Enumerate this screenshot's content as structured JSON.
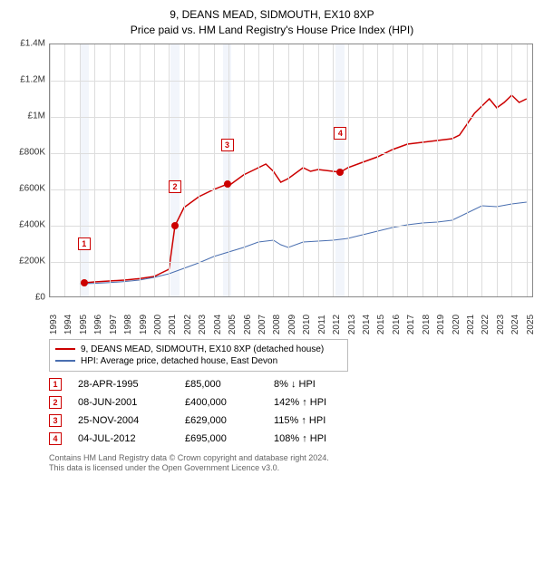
{
  "title": {
    "line1": "9, DEANS MEAD, SIDMOUTH, EX10 8XP",
    "line2": "Price paid vs. HM Land Registry's House Price Index (HPI)"
  },
  "chart": {
    "type": "line",
    "background_color": "#ffffff",
    "grid_color": "#dddddd",
    "border_color": "#888888",
    "band_color": "#e8edf7",
    "xlim": [
      1993,
      2025.5
    ],
    "ylim": [
      0,
      1400000
    ],
    "ytick_step": 200000,
    "y_ticks": [
      {
        "v": 0,
        "label": "£0"
      },
      {
        "v": 200000,
        "label": "£200K"
      },
      {
        "v": 400000,
        "label": "£400K"
      },
      {
        "v": 600000,
        "label": "£600K"
      },
      {
        "v": 800000,
        "label": "£800K"
      },
      {
        "v": 1000000,
        "label": "£1M"
      },
      {
        "v": 1200000,
        "label": "£1.2M"
      },
      {
        "v": 1400000,
        "label": "£1.4M"
      }
    ],
    "x_ticks": [
      1993,
      1994,
      1995,
      1996,
      1997,
      1998,
      1999,
      2000,
      2001,
      2002,
      2003,
      2004,
      2005,
      2006,
      2007,
      2008,
      2009,
      2010,
      2011,
      2012,
      2013,
      2014,
      2015,
      2016,
      2017,
      2018,
      2019,
      2020,
      2021,
      2022,
      2023,
      2024,
      2025
    ],
    "bands": [
      {
        "from": 1995.0,
        "to": 1995.6
      },
      {
        "from": 2001.1,
        "to": 2001.7
      },
      {
        "from": 2004.6,
        "to": 2005.2
      },
      {
        "from": 2012.2,
        "to": 2012.8
      }
    ],
    "series": [
      {
        "name": "property",
        "label": "9, DEANS MEAD, SIDMOUTH, EX10 8XP (detached house)",
        "color": "#cc0000",
        "line_width": 1.5,
        "points": [
          [
            1995.3,
            85000
          ],
          [
            1996,
            90000
          ],
          [
            1997,
            95000
          ],
          [
            1998,
            100000
          ],
          [
            1999,
            108000
          ],
          [
            2000,
            120000
          ],
          [
            2001,
            160000
          ],
          [
            2001.4,
            400000
          ],
          [
            2002,
            500000
          ],
          [
            2003,
            560000
          ],
          [
            2004,
            600000
          ],
          [
            2004.9,
            629000
          ],
          [
            2005,
            620000
          ],
          [
            2006,
            680000
          ],
          [
            2007,
            720000
          ],
          [
            2007.5,
            740000
          ],
          [
            2008,
            700000
          ],
          [
            2008.5,
            640000
          ],
          [
            2009,
            660000
          ],
          [
            2010,
            720000
          ],
          [
            2010.5,
            700000
          ],
          [
            2011,
            710000
          ],
          [
            2012,
            700000
          ],
          [
            2012.5,
            695000
          ],
          [
            2013,
            720000
          ],
          [
            2014,
            750000
          ],
          [
            2015,
            780000
          ],
          [
            2016,
            820000
          ],
          [
            2017,
            850000
          ],
          [
            2018,
            860000
          ],
          [
            2019,
            870000
          ],
          [
            2020,
            880000
          ],
          [
            2020.5,
            900000
          ],
          [
            2021,
            960000
          ],
          [
            2021.5,
            1020000
          ],
          [
            2022,
            1060000
          ],
          [
            2022.5,
            1100000
          ],
          [
            2023,
            1050000
          ],
          [
            2023.5,
            1080000
          ],
          [
            2024,
            1120000
          ],
          [
            2024.5,
            1080000
          ],
          [
            2025,
            1100000
          ]
        ]
      },
      {
        "name": "hpi",
        "label": "HPI: Average price, detached house, East Devon",
        "color": "#4a6fb0",
        "line_width": 1,
        "points": [
          [
            1995,
            80000
          ],
          [
            1996,
            82000
          ],
          [
            1997,
            86000
          ],
          [
            1998,
            92000
          ],
          [
            1999,
            100000
          ],
          [
            2000,
            115000
          ],
          [
            2001,
            135000
          ],
          [
            2002,
            165000
          ],
          [
            2003,
            195000
          ],
          [
            2004,
            230000
          ],
          [
            2005,
            255000
          ],
          [
            2006,
            280000
          ],
          [
            2007,
            310000
          ],
          [
            2008,
            320000
          ],
          [
            2008.5,
            295000
          ],
          [
            2009,
            280000
          ],
          [
            2010,
            310000
          ],
          [
            2011,
            315000
          ],
          [
            2012,
            320000
          ],
          [
            2013,
            330000
          ],
          [
            2014,
            350000
          ],
          [
            2015,
            370000
          ],
          [
            2016,
            390000
          ],
          [
            2017,
            405000
          ],
          [
            2018,
            415000
          ],
          [
            2019,
            420000
          ],
          [
            2020,
            430000
          ],
          [
            2021,
            470000
          ],
          [
            2022,
            510000
          ],
          [
            2023,
            505000
          ],
          [
            2024,
            520000
          ],
          [
            2025,
            530000
          ]
        ]
      }
    ],
    "sale_markers": [
      {
        "n": 1,
        "x": 1995.3,
        "y": 85000
      },
      {
        "n": 2,
        "x": 2001.4,
        "y": 400000
      },
      {
        "n": 3,
        "x": 2004.9,
        "y": 629000
      },
      {
        "n": 4,
        "x": 2012.5,
        "y": 695000
      }
    ],
    "marker_color": "#cc0000",
    "label_fontsize": 10
  },
  "legend": {
    "items": [
      {
        "color": "#cc0000",
        "label": "9, DEANS MEAD, SIDMOUTH, EX10 8XP (detached house)"
      },
      {
        "color": "#4a6fb0",
        "label": "HPI: Average price, detached house, East Devon"
      }
    ]
  },
  "events": [
    {
      "n": "1",
      "date": "28-APR-1995",
      "price": "£85,000",
      "hpi": "8% ↓ HPI"
    },
    {
      "n": "2",
      "date": "08-JUN-2001",
      "price": "£400,000",
      "hpi": "142% ↑ HPI"
    },
    {
      "n": "3",
      "date": "25-NOV-2004",
      "price": "£629,000",
      "hpi": "115% ↑ HPI"
    },
    {
      "n": "4",
      "date": "04-JUL-2012",
      "price": "£695,000",
      "hpi": "108% ↑ HPI"
    }
  ],
  "footnote": {
    "line1": "Contains HM Land Registry data © Crown copyright and database right 2024.",
    "line2": "This data is licensed under the Open Government Licence v3.0."
  }
}
